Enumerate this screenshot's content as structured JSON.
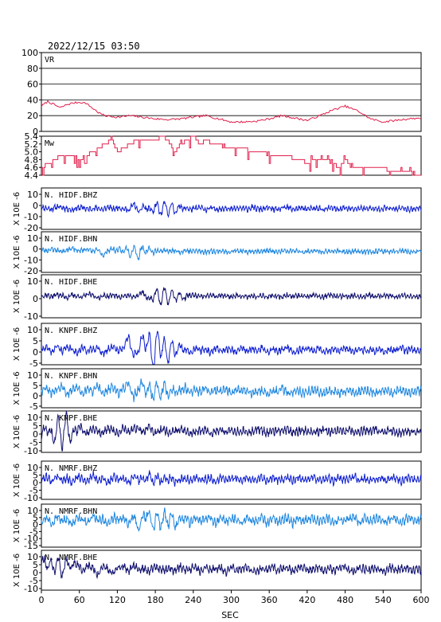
{
  "header": {
    "datetime": "2022/12/15 03:50"
  },
  "x_axis": {
    "label": "SEC",
    "ticks": [
      "0",
      "60",
      "120",
      "180",
      "240",
      "300",
      "360",
      "420",
      "480",
      "540",
      "600"
    ],
    "range": [
      0,
      600
    ]
  },
  "colors": {
    "vr": "#e0204c",
    "mw": "#e0204c",
    "bhz": "#1020d0",
    "bhn": "#2088e0",
    "bhe": "#10106e",
    "frame": "#000000",
    "grid": "#000000"
  },
  "chart_data": [
    {
      "type": "line",
      "name": "VR",
      "label": "VR",
      "ylim": [
        0,
        100
      ],
      "yticks": [
        0,
        20,
        40,
        60,
        80,
        100
      ],
      "grid": true,
      "x": [
        0,
        10,
        20,
        30,
        40,
        50,
        60,
        70,
        80,
        90,
        100,
        120,
        140,
        160,
        180,
        200,
        220,
        240,
        260,
        280,
        300,
        320,
        340,
        360,
        380,
        400,
        420,
        440,
        460,
        480,
        500,
        520,
        540,
        560,
        580,
        600
      ],
      "y": [
        32,
        38,
        34,
        30,
        34,
        36,
        37,
        36,
        30,
        24,
        20,
        18,
        20,
        18,
        16,
        15,
        16,
        18,
        20,
        16,
        12,
        12,
        13,
        16,
        20,
        17,
        14,
        20,
        27,
        32,
        26,
        16,
        12,
        14,
        16,
        17
      ]
    },
    {
      "type": "line",
      "name": "Mw",
      "label": "Mw",
      "ylim": [
        4.4,
        5.4
      ],
      "yticks": [
        4.4,
        4.6,
        4.8,
        5.0,
        5.2,
        5.4
      ],
      "grid": false,
      "x": [
        0,
        10,
        20,
        30,
        40,
        50,
        60,
        70,
        80,
        90,
        100,
        110,
        120,
        130,
        140,
        150,
        160,
        170,
        180,
        190,
        200,
        210,
        220,
        230,
        240,
        250,
        260,
        270,
        280,
        290,
        300,
        310,
        320,
        330,
        340,
        350,
        360,
        370,
        380,
        390,
        400,
        410,
        420,
        430,
        440,
        450,
        460,
        470,
        480,
        490,
        500,
        510,
        520,
        530,
        540,
        550,
        560,
        570,
        580,
        590,
        600
      ],
      "y": [
        4.6,
        4.7,
        4.8,
        4.9,
        4.9,
        4.9,
        4.8,
        4.9,
        5.0,
        5.1,
        5.2,
        5.3,
        5.0,
        5.1,
        5.2,
        5.3,
        5.3,
        5.3,
        5.3,
        5.4,
        5.3,
        5.0,
        5.2,
        5.3,
        5.4,
        5.2,
        5.3,
        5.2,
        5.2,
        5.1,
        5.1,
        5.1,
        5.1,
        5.0,
        5.0,
        5.0,
        4.9,
        4.9,
        4.9,
        4.9,
        4.8,
        4.8,
        4.7,
        4.8,
        4.8,
        4.8,
        4.7,
        4.6,
        4.8,
        4.6,
        4.6,
        4.6,
        4.6,
        4.6,
        4.6,
        4.5,
        4.5,
        4.5,
        4.5,
        4.4,
        4.4
      ]
    },
    {
      "type": "line",
      "name": "N.HIDF.BHZ",
      "label": "N. HIDF.BHZ",
      "ylim": [
        -20,
        20
      ],
      "yticks": [
        "10",
        "0",
        "-10",
        "-20"
      ],
      "ylabel": "X 10E -6",
      "color_key": "bhz",
      "amp": 3.5,
      "burst_center": 195,
      "burst_amp": 6,
      "seed": 11,
      "stride": 8,
      "values": [
        2,
        1,
        -1,
        3,
        2,
        0,
        -2,
        1,
        2,
        -1,
        0,
        1,
        -2,
        3,
        -1,
        2,
        0,
        -3,
        8,
        -6,
        5,
        -4,
        2,
        -1,
        0,
        1,
        -2,
        2,
        1,
        -1,
        0,
        2,
        -2,
        1,
        0,
        -1,
        2,
        -1,
        0,
        1,
        -1,
        2,
        0,
        -1,
        1,
        0,
        -2,
        1,
        2,
        -1,
        0,
        1,
        -1,
        0,
        1,
        -2,
        1,
        0,
        -1,
        1,
        0,
        -1,
        1,
        0,
        1,
        -1,
        0,
        1,
        0,
        -1,
        1,
        0,
        -1,
        0,
        1
      ]
    },
    {
      "type": "line",
      "name": "N.HIDF.BHN",
      "label": "N. HIDF.BHN",
      "ylim": [
        -20,
        20
      ],
      "yticks": [
        "10",
        "0",
        "-10",
        "-20"
      ],
      "ylabel": "X 10E -6",
      "color_key": "bhn",
      "amp": 3,
      "burst_center": 150,
      "burst_amp": 5,
      "seed": 23,
      "stride": 8,
      "values": [
        4,
        2,
        5,
        3,
        1,
        4,
        6,
        2,
        3,
        5,
        1,
        4,
        -6,
        3,
        5,
        2,
        4,
        1,
        2,
        -3,
        4,
        3,
        1,
        2,
        3,
        1,
        2,
        0,
        3,
        1,
        2,
        1,
        0,
        2,
        1,
        2,
        0,
        1,
        2,
        1,
        0,
        1,
        2,
        1,
        3,
        1,
        0,
        2,
        1,
        2,
        1,
        0,
        1,
        2,
        1,
        0,
        1,
        2,
        1,
        1,
        0,
        2,
        1,
        1,
        0,
        1,
        2,
        1,
        0,
        1,
        2,
        1,
        0,
        1,
        2
      ]
    },
    {
      "type": "line",
      "name": "N.HIDF.BHE",
      "label": "N. HIDF.BHE",
      "ylim": [
        -20,
        20
      ],
      "yticks": [
        "10",
        "0",
        "-10"
      ],
      "ylabel": "X 10E -6",
      "color_key": "bhe",
      "amp": 3,
      "burst_center": 195,
      "burst_amp": 7,
      "seed": 37,
      "stride": 8,
      "values": [
        0,
        2,
        -1,
        3,
        1,
        -2,
        2,
        0,
        -1,
        3,
        2,
        -3,
        1,
        0,
        2,
        -1,
        0,
        1,
        -2,
        3,
        6,
        -8,
        5,
        -3,
        2,
        -1,
        1,
        0,
        -2,
        2,
        1,
        -1,
        0,
        2,
        -1,
        1,
        0,
        -1,
        2,
        0,
        -1,
        1,
        0,
        2,
        -1,
        0,
        1,
        -1,
        2,
        0,
        1,
        -1,
        0,
        1,
        0,
        -1,
        2,
        0,
        -1,
        1,
        0,
        1,
        -1,
        0,
        2,
        -1,
        0,
        1,
        0,
        -1,
        1,
        0,
        1,
        -1,
        0
      ]
    },
    {
      "type": "line",
      "name": "N.KNPF.BHZ",
      "label": "N. KNPF.BHZ",
      "ylim": [
        -5,
        10
      ],
      "yticks": [
        "10",
        "5",
        "0",
        "-5"
      ],
      "ylabel": "X 10E -6",
      "color_key": "bhz",
      "amp": 1.6,
      "burst_center": 185,
      "burst_amp": 6,
      "seed": 41,
      "stride": 8,
      "values": [
        1,
        2,
        -1,
        3,
        0,
        2,
        1,
        -1,
        2,
        0,
        1,
        2,
        -2,
        1,
        3,
        0,
        2,
        9,
        -4,
        2,
        8,
        3,
        -5,
        9,
        -2,
        1,
        0,
        2,
        1,
        -1,
        2,
        0,
        1,
        -1,
        2,
        0,
        1,
        1,
        -1,
        2,
        0,
        1,
        0,
        2,
        -1,
        1,
        0,
        1,
        2,
        -1,
        0,
        1,
        1,
        0,
        2,
        -1,
        0,
        1,
        0,
        1,
        1,
        -1,
        2,
        0,
        1,
        0,
        1,
        -1,
        1,
        0,
        2,
        0,
        1,
        0,
        1
      ]
    },
    {
      "type": "line",
      "name": "N.KNPF.BHN",
      "label": "N. KNPF.BHN",
      "ylim": [
        -5,
        10
      ],
      "yticks": [
        "10",
        "5",
        "0",
        "-5"
      ],
      "ylabel": "X 10E -6",
      "color_key": "bhn",
      "amp": 2.2,
      "burst_center": 180,
      "burst_amp": 3,
      "seed": 53,
      "stride": 8,
      "values": [
        3,
        5,
        1,
        4,
        6,
        0,
        3,
        5,
        1,
        4,
        2,
        6,
        0,
        3,
        5,
        1,
        4,
        7,
        -2,
        5,
        6,
        1,
        3,
        2,
        4,
        1,
        3,
        2,
        5,
        1,
        3,
        2,
        4,
        1,
        3,
        2,
        3,
        1,
        4,
        2,
        3,
        1,
        2,
        3,
        1,
        3,
        2,
        4,
        1,
        2,
        3,
        1,
        2,
        3,
        2,
        1,
        3,
        2,
        1,
        2,
        3,
        1,
        2,
        3,
        2,
        1,
        2,
        3,
        1,
        2,
        3,
        2,
        1,
        2,
        3
      ]
    },
    {
      "type": "line",
      "name": "N.KNPF.BHE",
      "label": "N. KNPF.BHE",
      "ylim": [
        -10,
        10
      ],
      "yticks": [
        "10",
        "5",
        "0",
        "-5",
        "-10"
      ],
      "ylabel": "X 10E -6",
      "color_key": "bhe",
      "amp": 2.5,
      "burst_center": 30,
      "burst_amp": 6,
      "seed": 67,
      "stride": 8,
      "values": [
        -4,
        6,
        -7,
        5,
        -3,
        7,
        -6,
        4,
        1,
        -2,
        3,
        0,
        -1,
        2,
        1,
        -2,
        4,
        -1,
        3,
        2,
        -1,
        5,
        -2,
        1,
        2,
        -1,
        0,
        2,
        1,
        -1,
        0,
        1,
        2,
        -1,
        0,
        1,
        -1,
        2,
        0,
        1,
        -1,
        0,
        2,
        1,
        -1,
        0,
        1,
        0,
        2,
        -1,
        0,
        1,
        1,
        -1,
        0,
        2,
        0,
        -1,
        1,
        0,
        1,
        -1,
        0,
        1,
        0,
        2,
        -1,
        0,
        1,
        0,
        -1,
        1,
        0,
        1,
        0
      ]
    },
    {
      "type": "line",
      "name": "N.NMRF.BHZ",
      "label": "N. NMRF.BHZ",
      "ylim": [
        -10,
        10
      ],
      "yticks": [
        "10",
        "5",
        "0",
        "-5",
        "-10"
      ],
      "ylabel": "X 10E -6",
      "color_key": "bhz",
      "amp": 2.6,
      "burst_center": 180,
      "burst_amp": 2,
      "seed": 79,
      "stride": 8,
      "values": [
        1,
        3,
        -1,
        4,
        0,
        2,
        -2,
        3,
        1,
        -1,
        5,
        0,
        2,
        -3,
        3,
        1,
        2,
        -2,
        4,
        0,
        1,
        3,
        -1,
        2,
        0,
        3,
        -2,
        1,
        2,
        -1,
        3,
        0,
        1,
        2,
        -2,
        3,
        0,
        1,
        2,
        -1,
        2,
        1,
        0,
        3,
        -1,
        2,
        0,
        1,
        2,
        -1,
        3,
        0,
        1,
        2,
        0,
        1,
        2,
        -1,
        2,
        0,
        1,
        3,
        -1,
        2,
        0,
        1,
        2,
        0,
        1,
        2,
        -1,
        1,
        2,
        0,
        1
      ]
    },
    {
      "type": "line",
      "name": "N.NMRF.BHN",
      "label": "N. NMRF.BHN",
      "ylim": [
        -15,
        10
      ],
      "yticks": [
        "10",
        "5",
        "0",
        "-5",
        "-10",
        "-15"
      ],
      "ylabel": "X 10E -6",
      "color_key": "bhn",
      "amp": 3.2,
      "burst_center": 190,
      "burst_amp": 5,
      "seed": 97,
      "stride": 8,
      "values": [
        1,
        4,
        -2,
        5,
        0,
        3,
        -3,
        4,
        1,
        -2,
        6,
        0,
        3,
        -4,
        4,
        1,
        3,
        -3,
        5,
        -8,
        7,
        4,
        -2,
        3,
        0,
        4,
        -3,
        2,
        3,
        -2,
        4,
        0,
        2,
        3,
        -3,
        4,
        0,
        2,
        3,
        -2,
        3,
        1,
        0,
        4,
        -2,
        3,
        0,
        2,
        3,
        -2,
        4,
        0,
        2,
        3,
        0,
        2,
        3,
        -2,
        3,
        0,
        2,
        4,
        -2,
        3,
        0,
        2,
        3,
        0,
        2,
        3,
        -2,
        2,
        3,
        0,
        2
      ]
    },
    {
      "type": "line",
      "name": "N.NMRF.BHE",
      "label": "N. NMRF.BHE",
      "ylim": [
        -10,
        10
      ],
      "yticks": [
        "10",
        "5",
        "0",
        "-5",
        "-10"
      ],
      "ylabel": "X 10E -6",
      "color_key": "bhe",
      "amp": 2.6,
      "burst_center": 20,
      "burst_amp": 4,
      "seed": 113,
      "stride": 8,
      "values": [
        5,
        8,
        2,
        6,
        -1,
        7,
        3,
        5,
        0,
        4,
        2,
        -4,
        3,
        1,
        -2,
        2,
        3,
        -1,
        4,
        0,
        2,
        -1,
        3,
        1,
        0,
        2,
        -1,
        3,
        0,
        1,
        2,
        -1,
        3,
        0,
        1,
        2,
        -2,
        3,
        0,
        1,
        2,
        0,
        -1,
        2,
        1,
        3,
        0,
        1,
        2,
        -1,
        1,
        3,
        0,
        1,
        2,
        -1,
        2,
        0,
        1,
        3,
        0,
        -1,
        2,
        1,
        0,
        2,
        1,
        -1,
        2,
        0,
        1,
        2,
        0,
        1,
        0
      ]
    }
  ]
}
